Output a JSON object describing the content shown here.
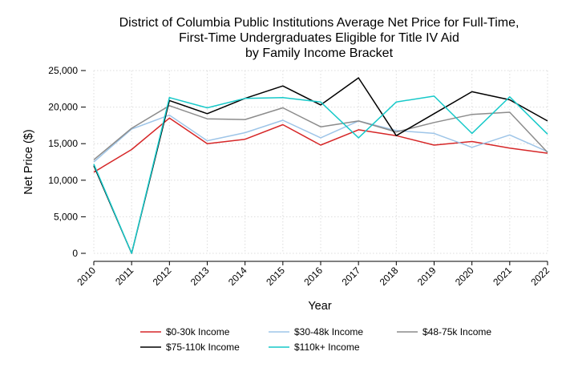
{
  "chart_data": {
    "type": "line",
    "title_lines": [
      "District of Columbia Public Institutions Average Net Price for Full-Time,",
      "First-Time Undergraduates Eligible for Title IV Aid",
      "by Family Income Bracket"
    ],
    "xlabel": "Year",
    "ylabel": "Net Price ($)",
    "x": [
      "2010",
      "2011",
      "2012",
      "2013",
      "2014",
      "2015",
      "2016",
      "2017",
      "2018",
      "2019",
      "2020",
      "2021",
      "2022"
    ],
    "ylim": [
      0,
      25000
    ],
    "yticks": [
      0,
      5000,
      10000,
      15000,
      20000,
      25000
    ],
    "ytick_labels": [
      "0",
      "5,000",
      "10,000",
      "15,000",
      "20,000",
      "25,000"
    ],
    "grid": true,
    "legend_position": "bottom",
    "series": [
      {
        "name": "$0-30k Income",
        "color": "#d62728",
        "values": [
          11100,
          14200,
          18500,
          15000,
          15600,
          17600,
          14800,
          16900,
          16100,
          14800,
          15300,
          14400,
          13700
        ]
      },
      {
        "name": "$30-48k Income",
        "color": "#9ec5e8",
        "values": [
          12500,
          17000,
          18900,
          15400,
          16500,
          18200,
          15800,
          18100,
          16800,
          16400,
          14500,
          16200,
          13900
        ]
      },
      {
        "name": "$48-75k Income",
        "color": "#8c8c8c",
        "values": [
          12800,
          17100,
          20200,
          18400,
          18300,
          19900,
          17300,
          18100,
          16600,
          17900,
          19000,
          19300,
          13800
        ]
      },
      {
        "name": "$75-110k Income",
        "color": "#000000",
        "values": [
          12000,
          0,
          20900,
          19100,
          21200,
          22900,
          20300,
          24000,
          16100,
          19100,
          22100,
          21000,
          18100
        ]
      },
      {
        "name": "$110k+ Income",
        "color": "#17c9c9",
        "values": [
          12200,
          0,
          21300,
          19900,
          21200,
          21300,
          20700,
          15800,
          20700,
          21500,
          16400,
          21400,
          16300
        ]
      }
    ]
  }
}
